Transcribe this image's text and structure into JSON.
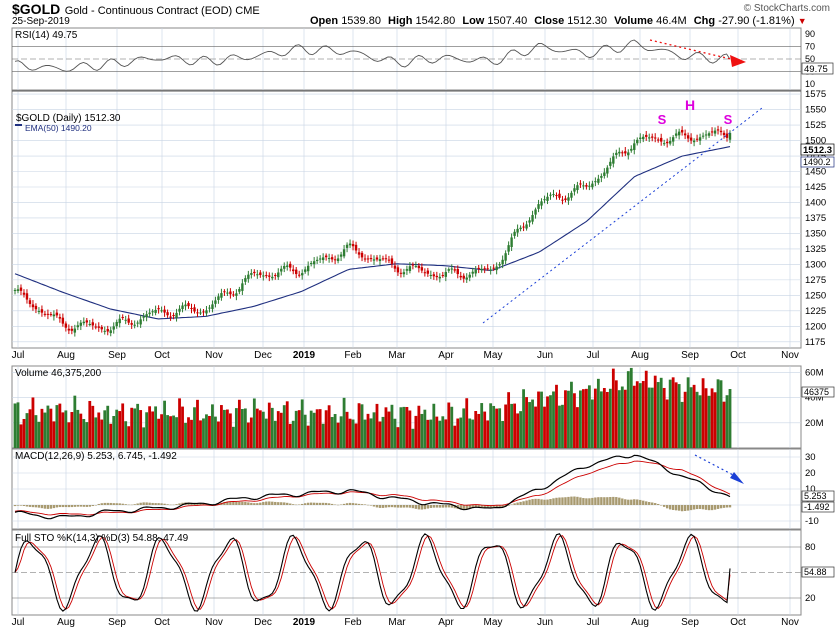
{
  "header": {
    "symbol": "$GOLD",
    "description": "Gold - Continuous Contract (EOD) CME",
    "date": "25-Sep-2019",
    "watermark": "© StockCharts.com",
    "open_label": "Open",
    "open": "1539.80",
    "high_label": "High",
    "high": "1542.80",
    "low_label": "Low",
    "low": "1507.40",
    "close_label": "Close",
    "close": "1512.30",
    "volume_label": "Volume",
    "volume": "46.4M",
    "chg_label": "Chg",
    "chg": "-27.90 (-1.81%)",
    "chg_arrow": "▼",
    "down_color": "#cc0000"
  },
  "rsi_panel": {
    "title": "RSI(14) 49.75",
    "current_label": "49.75",
    "tick_labels": [
      "90",
      "70",
      "50",
      "30",
      "10"
    ]
  },
  "price_panel": {
    "legend_symbol": "$GOLD (Daily) 1512.30",
    "legend_ema": "EMA(50) 1490.20",
    "current_price_label": "1512.3",
    "current_ema_label": "1490.2",
    "tick_labels": [
      "1575",
      "1550",
      "1525",
      "1500",
      "1475",
      "1450",
      "1425",
      "1400",
      "1375",
      "1350",
      "1325",
      "1300",
      "1275",
      "1250",
      "1225",
      "1200",
      "1175"
    ],
    "pattern_labels": {
      "left_shoulder": "S",
      "head": "H",
      "right_shoulder": "S"
    },
    "pattern_color": "#dd00dd"
  },
  "volume_panel": {
    "title": "Volume 46,375,200",
    "current_label": "46375",
    "tick_labels": [
      "60M",
      "40M",
      "20M"
    ]
  },
  "macd_panel": {
    "title": "MACD(12,26,9) 5.253, 6.745, -1.492",
    "macd_label": "5.253",
    "hist_label": "-1.492",
    "tick_labels": [
      "30",
      "20",
      "10",
      "0",
      "-10"
    ]
  },
  "sto_panel": {
    "title": "Full STO %K(14,3) %D(3) 54.88, 47.49",
    "current_label": "54.88",
    "tick_labels": [
      "80",
      "50",
      "20"
    ]
  },
  "x_axis": {
    "labels": [
      "Jul",
      "Aug",
      "Sep",
      "Oct",
      "Nov",
      "Dec",
      "2019",
      "Feb",
      "Mar",
      "Apr",
      "May",
      "Jun",
      "Jul",
      "Aug",
      "Sep",
      "Oct",
      "Nov"
    ]
  },
  "colors": {
    "up_bar": "#2e7d32",
    "down_bar": "#cc0000",
    "ema_line": "#1f2f7f",
    "grid": "#c8d4e4",
    "annotation_red": "#ee1111",
    "annotation_blue": "#1a3fd6"
  },
  "chart_data": [
    {
      "type": "line",
      "name": "RSI(14)",
      "ylim": [
        0,
        100
      ],
      "reference_lines": [
        70,
        50,
        30
      ],
      "x": [
        "Jul-18",
        "Aug-18",
        "Sep-18",
        "Oct-18",
        "Nov-18",
        "Dec-18",
        "Jan-19",
        "Feb-19",
        "Mar-19",
        "Apr-19",
        "May-19",
        "Jun-19",
        "Jul-19",
        "Aug-19",
        "Sep-19",
        "25-Sep-19"
      ],
      "values": [
        40,
        34,
        42,
        52,
        46,
        54,
        66,
        62,
        44,
        52,
        46,
        70,
        58,
        74,
        55,
        49.75
      ]
    },
    {
      "type": "candlestick",
      "name": "$GOLD (Daily)",
      "ylim": [
        1165,
        1580
      ],
      "x": [
        "Jul-18",
        "Aug-18",
        "Sep-18",
        "Oct-18",
        "Nov-18",
        "Dec-18",
        "Jan-19",
        "Feb-19",
        "Mar-19",
        "Apr-19",
        "May-19",
        "Jun-19",
        "Jul-19",
        "Aug-19",
        "Sep-19",
        "25-Sep-19"
      ],
      "close": [
        1255,
        1203,
        1198,
        1223,
        1228,
        1282,
        1292,
        1325,
        1296,
        1283,
        1290,
        1400,
        1425,
        1500,
        1505,
        1512.3
      ],
      "ema50": [
        1285,
        1255,
        1228,
        1212,
        1216,
        1232,
        1256,
        1292,
        1301,
        1298,
        1290,
        1320,
        1370,
        1442,
        1475,
        1490.2
      ],
      "last": {
        "open": 1539.8,
        "high": 1542.8,
        "low": 1507.4,
        "close": 1512.3
      }
    },
    {
      "type": "bar",
      "name": "Volume",
      "ylim": [
        0,
        65000000
      ],
      "x": [
        "Jul-18",
        "Aug-18",
        "Sep-18",
        "Oct-18",
        "Nov-18",
        "Dec-18",
        "Jan-19",
        "Feb-19",
        "Mar-19",
        "Apr-19",
        "May-19",
        "Jun-19",
        "Jul-19",
        "Aug-19",
        "Sep-19",
        "25-Sep-19"
      ],
      "values": [
        28000000,
        30000000,
        27000000,
        29000000,
        27000000,
        30000000,
        28000000,
        27000000,
        28000000,
        26000000,
        30000000,
        40000000,
        45000000,
        55000000,
        48000000,
        46375200
      ]
    },
    {
      "type": "line",
      "name": "MACD(12,26,9)",
      "ylim": [
        -15,
        35
      ],
      "x": [
        "Jul-18",
        "Aug-18",
        "Sep-18",
        "Oct-18",
        "Nov-18",
        "Dec-18",
        "Jan-19",
        "Feb-19",
        "Mar-19",
        "Apr-19",
        "May-19",
        "Jun-19",
        "Jul-19",
        "Aug-19",
        "Sep-19",
        "25-Sep-19"
      ],
      "series": [
        {
          "name": "MACD",
          "values": [
            -5,
            -8,
            -4,
            -2,
            1,
            5,
            7,
            9,
            4,
            0,
            -3,
            10,
            25,
            32,
            18,
            5.253
          ]
        },
        {
          "name": "Signal",
          "values": [
            -4,
            -6,
            -5,
            -3,
            0,
            3,
            6,
            8,
            6,
            2,
            -1,
            6,
            20,
            28,
            22,
            6.745
          ]
        },
        {
          "name": "Histogram",
          "values": [
            -1,
            -2,
            1,
            1,
            1,
            2,
            1,
            1,
            -2,
            -2,
            -2,
            4,
            5,
            4,
            -4,
            -1.492
          ]
        }
      ]
    },
    {
      "type": "line",
      "name": "Full STO %K(14,3) %D(3)",
      "ylim": [
        0,
        100
      ],
      "reference_lines": [
        80,
        50,
        20
      ],
      "x": [
        "Jul-18",
        "Aug-18",
        "Sep-18",
        "Oct-18",
        "Nov-18",
        "Dec-18",
        "Jan-19",
        "Feb-19",
        "Mar-19",
        "Apr-19",
        "May-19",
        "Jun-19",
        "Jul-19",
        "Aug-19",
        "Sep-19",
        "25-Sep-19"
      ],
      "series": [
        {
          "name": "%K",
          "values": [
            60,
            20,
            75,
            30,
            85,
            25,
            80,
            20,
            75,
            25,
            70,
            30,
            85,
            40,
            15,
            54.88
          ]
        },
        {
          "name": "%D",
          "values": [
            55,
            25,
            70,
            35,
            80,
            30,
            75,
            25,
            70,
            30,
            65,
            35,
            80,
            45,
            18,
            47.49
          ]
        }
      ]
    }
  ]
}
